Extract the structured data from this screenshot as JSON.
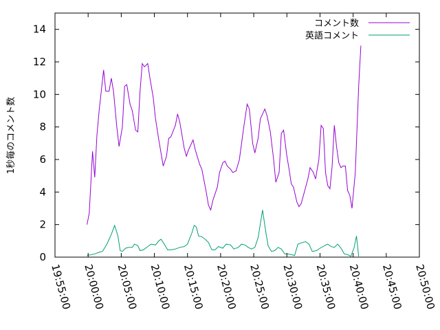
{
  "chart_data": {
    "type": "line",
    "title": "",
    "xlabel": "",
    "ylabel": "1秒毎のコメント数",
    "xlim": [
      "19:55:00",
      "20:50:00"
    ],
    "ylim": [
      0,
      15
    ],
    "x_ticks": [
      "19:55:00",
      "20:00:00",
      "20:05:00",
      "20:10:00",
      "20:15:00",
      "20:20:00",
      "20:25:00",
      "20:30:00",
      "20:35:00",
      "20:40:00",
      "20:45:00",
      "20:50:00"
    ],
    "y_ticks": [
      0,
      2,
      4,
      6,
      8,
      10,
      12,
      14
    ],
    "grid": false,
    "legend_position": "top-right",
    "series": [
      {
        "name": "コメント数",
        "color": "#9400d3",
        "points": [
          [
            "19:59:50",
            2.0
          ],
          [
            "20:00:10",
            2.7
          ],
          [
            "20:00:40",
            6.5
          ],
          [
            "20:01:00",
            4.9
          ],
          [
            "20:01:20",
            7.5
          ],
          [
            "20:01:40",
            9.0
          ],
          [
            "20:02:20",
            11.5
          ],
          [
            "20:02:40",
            10.2
          ],
          [
            "20:03:10",
            10.2
          ],
          [
            "20:03:30",
            11.0
          ],
          [
            "20:03:50",
            10.2
          ],
          [
            "20:04:20",
            8.0
          ],
          [
            "20:04:40",
            6.8
          ],
          [
            "20:05:10",
            8.0
          ],
          [
            "20:05:30",
            10.5
          ],
          [
            "20:05:50",
            10.6
          ],
          [
            "20:06:20",
            9.4
          ],
          [
            "20:06:40",
            9.0
          ],
          [
            "20:07:10",
            7.8
          ],
          [
            "20:07:30",
            7.7
          ],
          [
            "20:07:50",
            10.2
          ],
          [
            "20:08:10",
            11.9
          ],
          [
            "20:08:30",
            11.7
          ],
          [
            "20:09:00",
            11.9
          ],
          [
            "20:09:20",
            11.0
          ],
          [
            "20:09:50",
            9.8
          ],
          [
            "20:10:10",
            8.5
          ],
          [
            "20:10:40",
            7.2
          ],
          [
            "20:11:10",
            6.0
          ],
          [
            "20:11:20",
            5.6
          ],
          [
            "20:11:50",
            6.2
          ],
          [
            "20:12:10",
            7.3
          ],
          [
            "20:12:30",
            7.4
          ],
          [
            "20:13:10",
            8.1
          ],
          [
            "20:13:30",
            8.8
          ],
          [
            "20:13:50",
            8.3
          ],
          [
            "20:14:30",
            6.7
          ],
          [
            "20:14:50",
            6.2
          ],
          [
            "20:15:10",
            6.6
          ],
          [
            "20:15:50",
            7.2
          ],
          [
            "20:16:10",
            6.6
          ],
          [
            "20:16:50",
            5.7
          ],
          [
            "20:17:10",
            5.4
          ],
          [
            "20:17:50",
            4.0
          ],
          [
            "20:18:10",
            3.2
          ],
          [
            "20:18:30",
            2.9
          ],
          [
            "20:18:50",
            3.5
          ],
          [
            "20:19:30",
            4.3
          ],
          [
            "20:19:50",
            5.2
          ],
          [
            "20:20:20",
            5.8
          ],
          [
            "20:20:40",
            5.9
          ],
          [
            "20:21:00",
            5.6
          ],
          [
            "20:21:30",
            5.4
          ],
          [
            "20:21:50",
            5.2
          ],
          [
            "20:22:20",
            5.3
          ],
          [
            "20:22:50",
            6.0
          ],
          [
            "20:23:30",
            8.0
          ],
          [
            "20:24:00",
            9.4
          ],
          [
            "20:24:20",
            9.1
          ],
          [
            "20:24:50",
            7.0
          ],
          [
            "20:25:10",
            6.4
          ],
          [
            "20:25:40",
            7.3
          ],
          [
            "20:26:00",
            8.5
          ],
          [
            "20:26:40",
            9.1
          ],
          [
            "20:27:00",
            8.7
          ],
          [
            "20:27:30",
            7.7
          ],
          [
            "20:28:00",
            6.0
          ],
          [
            "20:28:20",
            4.6
          ],
          [
            "20:28:50",
            5.2
          ],
          [
            "20:29:10",
            7.6
          ],
          [
            "20:29:30",
            7.8
          ],
          [
            "20:30:00",
            6.2
          ],
          [
            "20:30:20",
            5.4
          ],
          [
            "20:30:40",
            4.5
          ],
          [
            "20:31:00",
            4.3
          ],
          [
            "20:31:30",
            3.4
          ],
          [
            "20:31:50",
            3.1
          ],
          [
            "20:32:10",
            3.3
          ],
          [
            "20:32:50",
            4.3
          ],
          [
            "20:33:10",
            4.8
          ],
          [
            "20:33:30",
            5.5
          ],
          [
            "20:34:00",
            5.2
          ],
          [
            "20:34:20",
            4.8
          ],
          [
            "20:34:50",
            6.0
          ],
          [
            "20:35:10",
            8.1
          ],
          [
            "20:35:30",
            7.9
          ],
          [
            "20:35:50",
            5.2
          ],
          [
            "20:36:10",
            4.4
          ],
          [
            "20:36:30",
            4.2
          ],
          [
            "20:36:50",
            5.6
          ],
          [
            "20:37:10",
            8.1
          ],
          [
            "20:37:30",
            6.8
          ],
          [
            "20:37:50",
            5.8
          ],
          [
            "20:38:10",
            5.5
          ],
          [
            "20:38:30",
            5.6
          ],
          [
            "20:38:50",
            5.6
          ],
          [
            "20:39:10",
            4.1
          ],
          [
            "20:39:30",
            3.8
          ],
          [
            "20:39:50",
            3.0
          ],
          [
            "20:40:20",
            5.2
          ],
          [
            "20:40:50",
            10.5
          ],
          [
            "20:41:10",
            13.0
          ]
        ]
      },
      {
        "name": "英語コメント",
        "color": "#009e73",
        "points": [
          [
            "19:59:50",
            0.1
          ],
          [
            "20:00:30",
            0.15
          ],
          [
            "20:01:00",
            0.2
          ],
          [
            "20:01:40",
            0.3
          ],
          [
            "20:02:10",
            0.35
          ],
          [
            "20:02:50",
            0.8
          ],
          [
            "20:03:30",
            1.4
          ],
          [
            "20:04:00",
            1.95
          ],
          [
            "20:04:30",
            1.3
          ],
          [
            "20:04:50",
            0.4
          ],
          [
            "20:05:10",
            0.35
          ],
          [
            "20:05:40",
            0.55
          ],
          [
            "20:06:10",
            0.6
          ],
          [
            "20:06:40",
            0.6
          ],
          [
            "20:07:00",
            0.8
          ],
          [
            "20:07:30",
            0.7
          ],
          [
            "20:07:50",
            0.4
          ],
          [
            "20:08:20",
            0.45
          ],
          [
            "20:09:00",
            0.65
          ],
          [
            "20:09:30",
            0.8
          ],
          [
            "20:10:10",
            0.75
          ],
          [
            "20:10:40",
            1.0
          ],
          [
            "20:11:00",
            1.1
          ],
          [
            "20:11:30",
            0.8
          ],
          [
            "20:12:00",
            0.45
          ],
          [
            "20:12:30",
            0.45
          ],
          [
            "20:13:10",
            0.5
          ],
          [
            "20:13:50",
            0.6
          ],
          [
            "20:14:30",
            0.65
          ],
          [
            "20:15:00",
            0.8
          ],
          [
            "20:15:40",
            1.5
          ],
          [
            "20:16:00",
            1.95
          ],
          [
            "20:16:20",
            1.85
          ],
          [
            "20:16:40",
            1.3
          ],
          [
            "20:17:10",
            1.25
          ],
          [
            "20:17:40",
            1.1
          ],
          [
            "20:18:10",
            0.9
          ],
          [
            "20:18:40",
            0.45
          ],
          [
            "20:19:10",
            0.45
          ],
          [
            "20:19:40",
            0.65
          ],
          [
            "20:20:20",
            0.55
          ],
          [
            "20:20:50",
            0.8
          ],
          [
            "20:21:30",
            0.75
          ],
          [
            "20:22:00",
            0.5
          ],
          [
            "20:22:40",
            0.6
          ],
          [
            "20:23:10",
            0.8
          ],
          [
            "20:23:40",
            0.75
          ],
          [
            "20:24:10",
            0.6
          ],
          [
            "20:24:40",
            0.5
          ],
          [
            "20:25:10",
            0.6
          ],
          [
            "20:25:40",
            1.2
          ],
          [
            "20:26:20",
            2.9
          ],
          [
            "20:26:50",
            1.5
          ],
          [
            "20:27:10",
            0.7
          ],
          [
            "20:27:40",
            0.35
          ],
          [
            "20:28:10",
            0.4
          ],
          [
            "20:28:40",
            0.6
          ],
          [
            "20:29:10",
            0.5
          ],
          [
            "20:29:40",
            0.2
          ],
          [
            "20:30:10",
            0.2
          ],
          [
            "20:30:40",
            0.15
          ],
          [
            "20:31:10",
            0.1
          ],
          [
            "20:31:40",
            0.8
          ],
          [
            "20:32:20",
            0.9
          ],
          [
            "20:32:50",
            0.95
          ],
          [
            "20:33:20",
            0.8
          ],
          [
            "20:33:50",
            0.35
          ],
          [
            "20:34:30",
            0.4
          ],
          [
            "20:35:00",
            0.55
          ],
          [
            "20:35:40",
            0.7
          ],
          [
            "20:36:10",
            0.8
          ],
          [
            "20:36:40",
            0.65
          ],
          [
            "20:37:10",
            0.6
          ],
          [
            "20:37:40",
            0.8
          ],
          [
            "20:38:10",
            0.55
          ],
          [
            "20:38:40",
            0.2
          ],
          [
            "20:39:10",
            0.15
          ],
          [
            "20:39:40",
            0.05
          ],
          [
            "20:40:10",
            0.6
          ],
          [
            "20:40:30",
            1.3
          ],
          [
            "20:40:50",
            0.05
          ]
        ]
      }
    ]
  }
}
